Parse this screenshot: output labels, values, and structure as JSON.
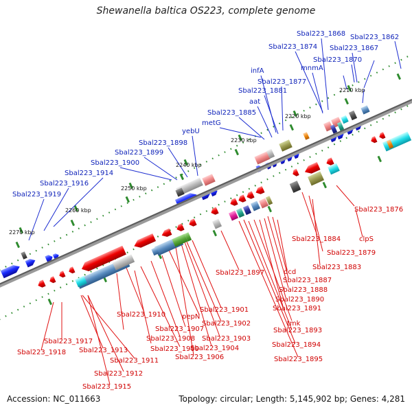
{
  "title": "Shewanella baltica OS223, complete genome",
  "accession": "Accession: NC_011663",
  "topology": "Topology: circular; Length: 5,145,902 bp; Genes: 4,281",
  "colors": {
    "top_labels": "#0b1fb8",
    "bottom_labels": "#d00000",
    "backbone": "#777777",
    "tick": "#2e8b2e",
    "label_line_blue": "#1a2bd0",
    "label_line_red": "#e01010"
  },
  "kbp_ticks": [
    "2210 kbp",
    "2220 kbp",
    "2230 kbp",
    "2240 kbp",
    "2250 kbp",
    "2260 kbp",
    "2270 kbp"
  ],
  "top_labels": [
    "Sbal223_1868",
    "Sbal223_1862",
    "Sbal223_1874",
    "Sbal223_1867",
    "mnmA",
    "Sbal223_1870",
    "infA",
    "Sbal223_1877",
    "Sbal223_1881",
    "aat",
    "Sbal223_1885",
    "metG",
    "yebU",
    "Sbal223_1898",
    "Sbal223_1899",
    "Sbal223_1900",
    "Sbal223_1914",
    "Sbal223_1916",
    "Sbal223_1919"
  ],
  "bottom_labels": [
    "Sbal223_1876",
    "clpS",
    "Sbal223_1884",
    "Sbal223_1879",
    "Sbal223_1883",
    "Sbal223_1897",
    "dcd",
    "Sbal223_1887",
    "Sbal223_1888",
    "Sbal223_1890",
    "Sbal223_1891",
    "Sbal223_1901",
    "tmk",
    "Sbal223_1893",
    "Sbal223_1902",
    "Sbal223_1894",
    "Sbal223_1895",
    "Sbal223_1903",
    "Sbal223_1904",
    "Sbal223_1906",
    "Sbal223_1910",
    "pepN",
    "Sbal223_1907",
    "Sbal223_1908",
    "Sbal223_1909",
    "Sbal223_1917",
    "Sbal223_1918",
    "Sbal223_1913",
    "Sbal223_1911",
    "Sbal223_1912",
    "Sbal223_1915"
  ]
}
